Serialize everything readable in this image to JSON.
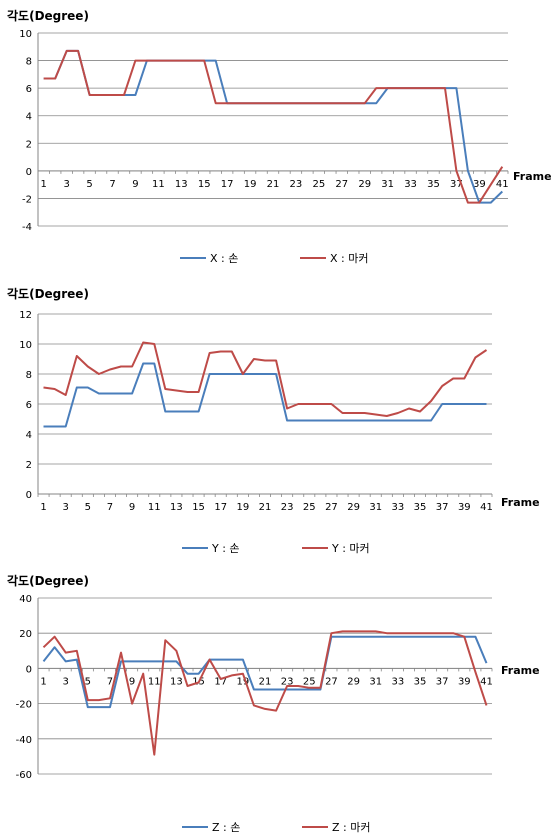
{
  "chart_data": [
    {
      "type": "line",
      "ylabel": "각도(Degree)",
      "xlabel": "Frame",
      "ylim": [
        -4,
        10
      ],
      "yticks": [
        -4,
        -2,
        0,
        2,
        4,
        6,
        8,
        10
      ],
      "xtick_labels": [
        "1",
        "3",
        "5",
        "7",
        "9",
        "11",
        "13",
        "15",
        "17",
        "19",
        "21",
        "23",
        "25",
        "27",
        "29",
        "31",
        "33",
        "35",
        "37",
        "39",
        "41"
      ],
      "grid": "horizontal",
      "legend_position": "bottom",
      "series": [
        {
          "name": "X : 손",
          "color": "#4a7ebb",
          "values": [
            6.7,
            6.7,
            8.7,
            8.7,
            5.5,
            5.5,
            5.5,
            5.5,
            5.5,
            8,
            8,
            8,
            8,
            8,
            8,
            8,
            4.9,
            4.9,
            4.9,
            4.9,
            4.9,
            4.9,
            4.9,
            4.9,
            4.9,
            4.9,
            4.9,
            4.9,
            4.9,
            4.9,
            6,
            6,
            6,
            6,
            6,
            6,
            6,
            0,
            -2.3,
            -2.3,
            -1.5
          ]
        },
        {
          "name": "X : 마커",
          "color": "#be4b48",
          "values": [
            6.7,
            6.7,
            8.7,
            8.7,
            5.5,
            5.5,
            5.5,
            5.5,
            8,
            8,
            8,
            8,
            8,
            8,
            8,
            4.9,
            4.9,
            4.9,
            4.9,
            4.9,
            4.9,
            4.9,
            4.9,
            4.9,
            4.9,
            4.9,
            4.9,
            4.9,
            4.9,
            6,
            6,
            6,
            6,
            6,
            6,
            6,
            0,
            -2.3,
            -2.3,
            -1,
            0.3
          ]
        }
      ]
    },
    {
      "type": "line",
      "ylabel": "각도(Degree)",
      "xlabel": "Frame",
      "ylim": [
        0,
        12
      ],
      "yticks": [
        0,
        2,
        4,
        6,
        8,
        10,
        12
      ],
      "xtick_labels": [
        "1",
        "3",
        "5",
        "7",
        "9",
        "11",
        "13",
        "15",
        "17",
        "19",
        "21",
        "23",
        "25",
        "27",
        "29",
        "31",
        "33",
        "35",
        "37",
        "39",
        "41"
      ],
      "grid": "horizontal",
      "legend_position": "bottom",
      "series": [
        {
          "name": "Y : 손",
          "color": "#4a7ebb",
          "values": [
            4.5,
            4.5,
            4.5,
            7.1,
            7.1,
            6.7,
            6.7,
            6.7,
            6.7,
            8.7,
            8.7,
            5.5,
            5.5,
            5.5,
            5.5,
            8,
            8,
            8,
            8,
            8,
            8,
            8,
            4.9,
            4.9,
            4.9,
            4.9,
            4.9,
            4.9,
            4.9,
            4.9,
            4.9,
            4.9,
            4.9,
            4.9,
            4.9,
            4.9,
            6,
            6,
            6,
            6,
            6
          ]
        },
        {
          "name": "Y : 마커",
          "color": "#be4b48",
          "values": [
            7.1,
            7.0,
            6.6,
            9.2,
            8.5,
            8.0,
            8.3,
            8.5,
            8.5,
            10.1,
            10.0,
            7.0,
            6.9,
            6.8,
            6.8,
            9.4,
            9.5,
            9.5,
            8.0,
            9.0,
            8.9,
            8.9,
            5.7,
            6.0,
            6.0,
            6.0,
            6.0,
            5.4,
            5.4,
            5.4,
            5.3,
            5.2,
            5.4,
            5.7,
            5.5,
            6.2,
            7.2,
            7.7,
            7.7,
            9.1,
            9.6
          ]
        }
      ]
    },
    {
      "type": "line",
      "ylabel": "각도(Degree)",
      "xlabel": "Frame",
      "ylim": [
        -60,
        40
      ],
      "yticks": [
        -60,
        -40,
        -20,
        0,
        20,
        40
      ],
      "xtick_labels": [
        "1",
        "3",
        "5",
        "7",
        "9",
        "11",
        "13",
        "15",
        "17",
        "19",
        "21",
        "23",
        "25",
        "27",
        "29",
        "31",
        "33",
        "35",
        "37",
        "39",
        "41"
      ],
      "grid": "horizontal",
      "legend_position": "bottom",
      "series": [
        {
          "name": "Z : 손",
          "color": "#4a7ebb",
          "values": [
            4,
            12,
            4,
            5,
            -22,
            -22,
            -22,
            4,
            4,
            4,
            4,
            4,
            4,
            -3,
            -3,
            5,
            5,
            5,
            5,
            -12,
            -12,
            -12,
            -12,
            -12,
            -12,
            -12,
            18,
            18,
            18,
            18,
            18,
            18,
            18,
            18,
            18,
            18,
            18,
            18,
            18,
            18,
            3
          ]
        },
        {
          "name": "Z : 마커",
          "color": "#be4b48",
          "values": [
            12,
            18,
            9,
            10,
            -18,
            -18,
            -17,
            9,
            -20,
            -3,
            -49,
            16,
            10,
            -10,
            -8,
            5,
            -6,
            -4,
            -3,
            -21,
            -23,
            -24,
            -10,
            -10,
            -11,
            -11,
            20,
            21,
            21,
            21,
            21,
            20,
            20,
            20,
            20,
            20,
            20,
            20,
            18,
            -2,
            -21
          ]
        }
      ]
    }
  ]
}
